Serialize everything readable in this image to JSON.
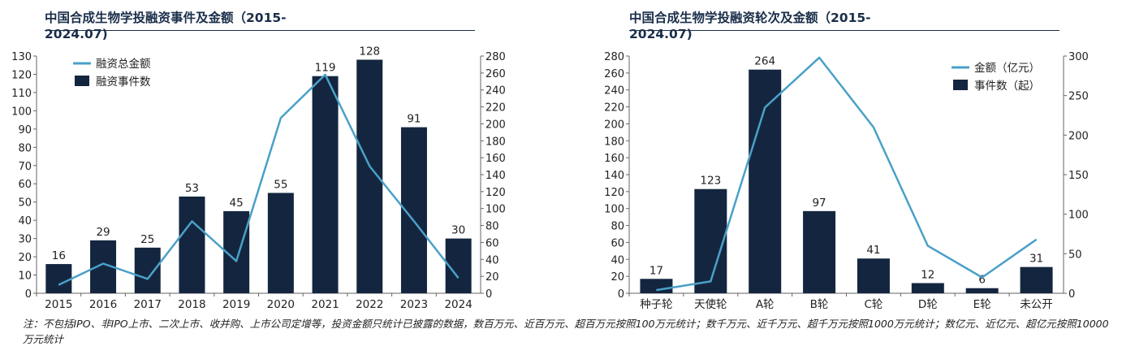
{
  "chart_data": [
    {
      "type": "bar",
      "title": "中国合成生物学投融资事件及金额（2015-2024.07)",
      "categories": [
        "2015",
        "2016",
        "2017",
        "2018",
        "2019",
        "2020",
        "2021",
        "2022",
        "2023",
        "2024"
      ],
      "series": [
        {
          "name": "融资事件数",
          "kind": "bar",
          "axis": "left",
          "values": [
            16,
            29,
            25,
            53,
            45,
            55,
            119,
            128,
            91,
            30
          ]
        },
        {
          "name": "融资总金额",
          "kind": "line",
          "axis": "right",
          "values": [
            10,
            35,
            17,
            85,
            38,
            207,
            258,
            150,
            85,
            18
          ]
        }
      ],
      "ylim_left": [
        0,
        130
      ],
      "yticks_left": [
        0,
        10,
        20,
        30,
        40,
        50,
        60,
        70,
        80,
        90,
        100,
        110,
        120,
        130
      ],
      "ylim_right": [
        0,
        280
      ],
      "yticks_right": [
        0,
        20,
        40,
        60,
        80,
        100,
        120,
        140,
        160,
        180,
        200,
        220,
        240,
        260,
        280
      ],
      "legend": "top-left"
    },
    {
      "type": "bar",
      "title": "中国合成生物学投融资轮次及金额（2015-2024.07)",
      "categories": [
        "种子轮",
        "天使轮",
        "A轮",
        "B轮",
        "C轮",
        "D轮",
        "E轮",
        "未公开"
      ],
      "series": [
        {
          "name": "事件数（起）",
          "kind": "bar",
          "axis": "left",
          "values": [
            17,
            123,
            264,
            97,
            41,
            12,
            6,
            31
          ]
        },
        {
          "name": "金额（亿元）",
          "kind": "line",
          "axis": "right",
          "values": [
            4,
            15,
            235,
            298,
            210,
            60,
            20,
            68
          ]
        }
      ],
      "ylim_left": [
        0,
        280
      ],
      "yticks_left": [
        0,
        20,
        40,
        60,
        80,
        100,
        120,
        140,
        160,
        180,
        200,
        220,
        240,
        260,
        280
      ],
      "ylim_right": [
        0,
        300
      ],
      "yticks_right": [
        0,
        50,
        100,
        150,
        200,
        250,
        300
      ],
      "legend": "top-right"
    }
  ],
  "colors": {
    "bar": "#14263f",
    "line": "#4aa0c8",
    "title": "#1a2e4a"
  },
  "footnote": "注：不包括IPO、非IPO上市、二次上市、收并购、上市公司定增等，投资金额只统计已披露的数据，数百万元、近百万元、超百万元按照100万元统计；数千万元、近千万元、超千万元按照1000万元统计；数亿元、近亿元、超亿元按照10000万元统计"
}
